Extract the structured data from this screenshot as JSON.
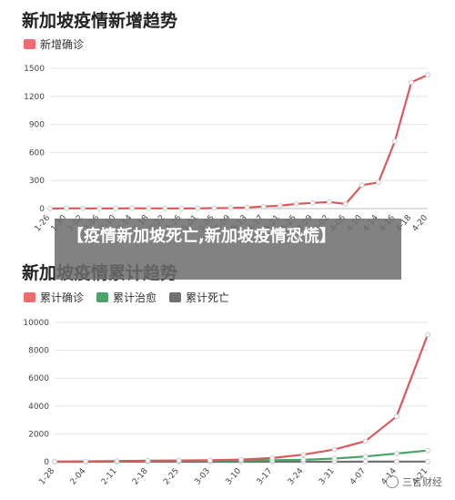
{
  "chart_data": [
    {
      "type": "line",
      "title": "新加坡疫情新增趋势",
      "x": [
        "1-26",
        "1-30",
        "2-02",
        "2-06",
        "2-10",
        "2-14",
        "2-18",
        "2-22",
        "2-26",
        "3-01",
        "3-05",
        "3-09",
        "3-13",
        "3-17",
        "3-21",
        "3-25",
        "3-29",
        "4-02",
        "4-06",
        "4-10",
        "4-14",
        "4-16",
        "4-18",
        "4-20"
      ],
      "x_tick_labels": [
        "1-26",
        "1-30",
        "2-02",
        "2-06",
        "2-10",
        "2-14",
        "2-18",
        "2-22",
        "2-26",
        "3-01",
        "3-05",
        "3-09",
        "3-13",
        "3-17",
        "3-21",
        "3-25",
        "3-29",
        "4-02",
        "4-06",
        "4-10",
        "4-14",
        "4-16",
        "4-18",
        "4-20"
      ],
      "series": [
        {
          "name": "新增确诊",
          "color": "#d9595e",
          "values": [
            0,
            3,
            1,
            2,
            1,
            3,
            2,
            2,
            1,
            2,
            5,
            6,
            12,
            22,
            30,
            50,
            60,
            70,
            50,
            250,
            280,
            720,
            1350,
            1430
          ]
        }
      ],
      "ylim": [
        0,
        1500
      ],
      "yticks": [
        0,
        300,
        600,
        900,
        1200,
        1500
      ],
      "grid": true,
      "legend": "top-left"
    },
    {
      "type": "line",
      "title": "新加坡疫情累计趋势",
      "x": [
        "1-28",
        "2-04",
        "2-11",
        "2-18",
        "2-25",
        "3-03",
        "3-10",
        "3-17",
        "3-24",
        "3-31",
        "4-07",
        "4-14",
        "4-21"
      ],
      "x_tick_labels": [
        "1-28",
        "2-04",
        "2-11",
        "2-18",
        "2-25",
        "3-03",
        "3-10",
        "3-17",
        "3-24",
        "3-31",
        "4-07",
        "4-14",
        "4-21"
      ],
      "series": [
        {
          "name": "累计确诊",
          "color": "#d9595e",
          "values": [
            7,
            28,
            50,
            77,
            93,
            110,
            160,
            266,
            507,
            879,
            1481,
            3252,
            9125
          ]
        },
        {
          "name": "累计治愈",
          "color": "#4aa46a",
          "values": [
            0,
            0,
            15,
            29,
            53,
            78,
            96,
            114,
            144,
            228,
            377,
            586,
            801
          ]
        },
        {
          "name": "累计死亡",
          "color": "#6f6f6f",
          "values": [
            0,
            0,
            0,
            0,
            0,
            0,
            0,
            0,
            2,
            3,
            6,
            10,
            11
          ]
        }
      ],
      "ylim": [
        0,
        10000
      ],
      "yticks": [
        0,
        2000,
        4000,
        6000,
        8000,
        10000
      ],
      "grid": true,
      "legend": "top-left"
    }
  ],
  "banner": {
    "text": "【疫情新加坡死亡,新加坡疫情恐慌】"
  },
  "watermark": {
    "text": "三言财经"
  }
}
